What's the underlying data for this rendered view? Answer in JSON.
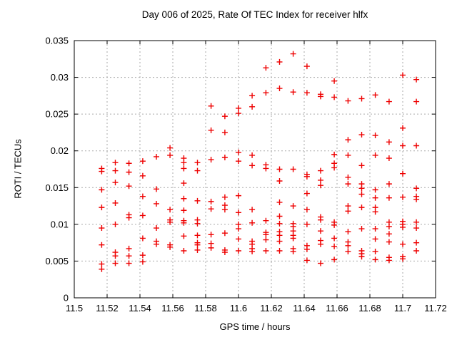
{
  "window": {
    "background": "#ffffff",
    "foreground": "#000000"
  },
  "chart": {
    "title": "Day 006 of 2025, Rate Of TEC Index for receiver hlfx",
    "xlabel": "GPS time / hours",
    "ylabel": "ROTI / TECUs"
  },
  "chart_data": {
    "type": "scatter",
    "title": "Day 006 of 2025, Rate Of TEC Index for receiver hlfx",
    "xlabel": "GPS time / hours",
    "ylabel": "ROTI / TECUs",
    "xlim": [
      11.5,
      11.72
    ],
    "ylim": [
      0,
      0.035
    ],
    "grid": true,
    "grid_color": "#aaaaaa",
    "border_color": "#000000",
    "marker": {
      "shape": "plus",
      "color": "#ee0000",
      "size": 9
    },
    "xticks": {
      "values": [
        11.5,
        11.52,
        11.54,
        11.56,
        11.58,
        11.6,
        11.62,
        11.64,
        11.66,
        11.68,
        11.7,
        11.72
      ],
      "labels": [
        "11.5",
        "11.52",
        "11.54",
        "11.56",
        "11.58",
        "11.6",
        "11.62",
        "11.64",
        "11.66",
        "11.68",
        "11.7",
        "11.72"
      ]
    },
    "yticks": {
      "values": [
        0,
        0.005,
        0.01,
        0.015,
        0.02,
        0.025,
        0.03,
        0.035
      ],
      "labels": [
        "0",
        "0.005",
        "0.01",
        "0.015",
        "0.02",
        "0.025",
        "0.03",
        "0.035"
      ]
    },
    "series": [
      {
        "name": "ROTI",
        "color": "#ee0000",
        "columns": [
          {
            "x": 11.5167,
            "y": [
              0.0176,
              0.0172,
              0.0147,
              0.0123,
              0.0095,
              0.0072,
              0.0046,
              0.0039
            ]
          },
          {
            "x": 11.525,
            "y": [
              0.0184,
              0.0173,
              0.0157,
              0.0129,
              0.01,
              0.0062,
              0.0057,
              0.0047
            ]
          },
          {
            "x": 11.5333,
            "y": [
              0.0183,
              0.0171,
              0.0152,
              0.0113,
              0.0109,
              0.0067,
              0.0057,
              0.0047
            ]
          },
          {
            "x": 11.5417,
            "y": [
              0.0186,
              0.0166,
              0.0138,
              0.0112,
              0.0081,
              0.0058,
              0.0049
            ]
          },
          {
            "x": 11.55,
            "y": [
              0.0192,
              0.0148,
              0.0128,
              0.0095,
              0.0077,
              0.0073
            ]
          },
          {
            "x": 11.5583,
            "y": [
              0.0204,
              0.0194,
              0.012,
              0.0106,
              0.0103,
              0.0072,
              0.0069
            ]
          },
          {
            "x": 11.5667,
            "y": [
              0.019,
              0.0184,
              0.0176,
              0.0156,
              0.0135,
              0.0119,
              0.0105,
              0.0102,
              0.0084,
              0.0064
            ]
          },
          {
            "x": 11.575,
            "y": [
              0.0184,
              0.0173,
              0.0132,
              0.0106,
              0.0101,
              0.0085,
              0.0075,
              0.0072,
              0.0065
            ]
          },
          {
            "x": 11.5833,
            "y": [
              0.0261,
              0.0228,
              0.0188,
              0.0131,
              0.0121,
              0.0086,
              0.0074,
              0.0068
            ]
          },
          {
            "x": 11.5917,
            "y": [
              0.0247,
              0.0225,
              0.0191,
              0.0137,
              0.0126,
              0.012,
              0.0088,
              0.0065,
              0.0062
            ]
          },
          {
            "x": 11.6,
            "y": [
              0.0258,
              0.0251,
              0.0198,
              0.0186,
              0.0139,
              0.0116,
              0.01,
              0.0094,
              0.008,
              0.0064
            ]
          },
          {
            "x": 11.6083,
            "y": [
              0.0275,
              0.026,
              0.0194,
              0.018,
              0.012,
              0.0102,
              0.0077,
              0.0073,
              0.0067,
              0.0063
            ]
          },
          {
            "x": 11.6167,
            "y": [
              0.0313,
              0.0279,
              0.0181,
              0.0176,
              0.0105,
              0.0089,
              0.0086,
              0.0079,
              0.0064
            ]
          },
          {
            "x": 11.625,
            "y": [
              0.0321,
              0.0285,
              0.0175,
              0.0159,
              0.013,
              0.0111,
              0.0101,
              0.009,
              0.0085,
              0.0077,
              0.0064
            ]
          },
          {
            "x": 11.6333,
            "y": [
              0.0332,
              0.028,
              0.0175,
              0.0125,
              0.0101,
              0.0097,
              0.0091,
              0.0085,
              0.0081,
              0.0067,
              0.0063
            ]
          },
          {
            "x": 11.6417,
            "y": [
              0.0315,
              0.0279,
              0.0168,
              0.0165,
              0.0142,
              0.012,
              0.01,
              0.0071,
              0.0066,
              0.0051
            ]
          },
          {
            "x": 11.65,
            "y": [
              0.0277,
              0.0274,
              0.0173,
              0.016,
              0.0153,
              0.011,
              0.0106,
              0.0091,
              0.0078,
              0.0073,
              0.0047
            ]
          },
          {
            "x": 11.6583,
            "y": [
              0.0295,
              0.0273,
              0.0195,
              0.0183,
              0.0177,
              0.0103,
              0.0099,
              0.0081,
              0.007,
              0.0052
            ]
          },
          {
            "x": 11.6667,
            "y": [
              0.0268,
              0.0215,
              0.0194,
              0.0164,
              0.0155,
              0.0125,
              0.0118,
              0.009,
              0.0076,
              0.0071,
              0.0063
            ]
          },
          {
            "x": 11.675,
            "y": [
              0.0271,
              0.0222,
              0.018,
              0.0155,
              0.0149,
              0.0141,
              0.0123,
              0.0094,
              0.0064,
              0.006,
              0.0056
            ]
          },
          {
            "x": 11.6833,
            "y": [
              0.0276,
              0.0221,
              0.0194,
              0.0147,
              0.0136,
              0.0123,
              0.0117,
              0.0094,
              0.008,
              0.0063,
              0.0052
            ]
          },
          {
            "x": 11.6917,
            "y": [
              0.0267,
              0.0212,
              0.019,
              0.0155,
              0.0136,
              0.0103,
              0.0097,
              0.0087,
              0.0076,
              0.0055,
              0.0051
            ]
          },
          {
            "x": 11.7,
            "y": [
              0.0303,
              0.0231,
              0.0207,
              0.0169,
              0.0137,
              0.0104,
              0.01,
              0.0096,
              0.0073,
              0.0056,
              0.0053
            ]
          },
          {
            "x": 11.7083,
            "y": [
              0.0297,
              0.0267,
              0.0207,
              0.0149,
              0.0138,
              0.0134,
              0.0103,
              0.0095,
              0.0075,
              0.0064
            ]
          }
        ]
      }
    ]
  }
}
